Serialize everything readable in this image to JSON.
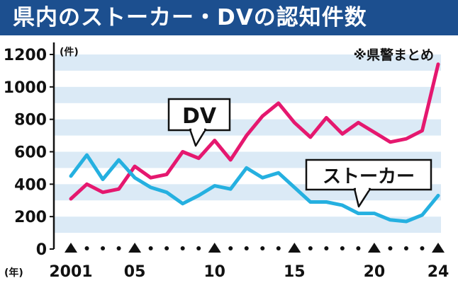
{
  "title": "県内のストーカー・DVの認知件数",
  "source_note": "※県警まとめ",
  "colors": {
    "title_bg": "#1c4f8f",
    "title_text": "#ffffff",
    "band": "#dbeaf6",
    "dv": "#e5186f",
    "stalker": "#25b0e0",
    "axis": "#111111"
  },
  "chart_data": {
    "type": "line",
    "title": "県内のストーカー・DVの認知件数",
    "ylabel": "(件)",
    "xlabel": "(年)",
    "ylim": [
      0,
      1200
    ],
    "yticks": [
      0,
      200,
      400,
      600,
      800,
      1000,
      1200
    ],
    "x": [
      2001,
      2002,
      2003,
      2004,
      2005,
      2006,
      2007,
      2008,
      2009,
      2010,
      2011,
      2012,
      2013,
      2014,
      2015,
      2016,
      2017,
      2018,
      2019,
      2020,
      2021,
      2022,
      2023,
      2024
    ],
    "xtick_labels": [
      {
        "x": 2001,
        "label": "2001"
      },
      {
        "x": 2005,
        "label": "05"
      },
      {
        "x": 2010,
        "label": "10"
      },
      {
        "x": 2015,
        "label": "15"
      },
      {
        "x": 2020,
        "label": "20"
      },
      {
        "x": 2024,
        "label": "24"
      }
    ],
    "grid": "horizontal bands",
    "series": [
      {
        "name": "DV",
        "color": "#e5186f",
        "values": [
          310,
          400,
          350,
          370,
          510,
          440,
          460,
          600,
          560,
          670,
          550,
          700,
          820,
          900,
          780,
          690,
          810,
          710,
          780,
          720,
          660,
          680,
          730,
          1140
        ]
      },
      {
        "name": "ストーカー",
        "color": "#25b0e0",
        "values": [
          450,
          580,
          430,
          550,
          440,
          380,
          350,
          280,
          330,
          390,
          370,
          500,
          440,
          470,
          380,
          290,
          290,
          270,
          220,
          220,
          180,
          170,
          210,
          330
        ]
      }
    ]
  }
}
